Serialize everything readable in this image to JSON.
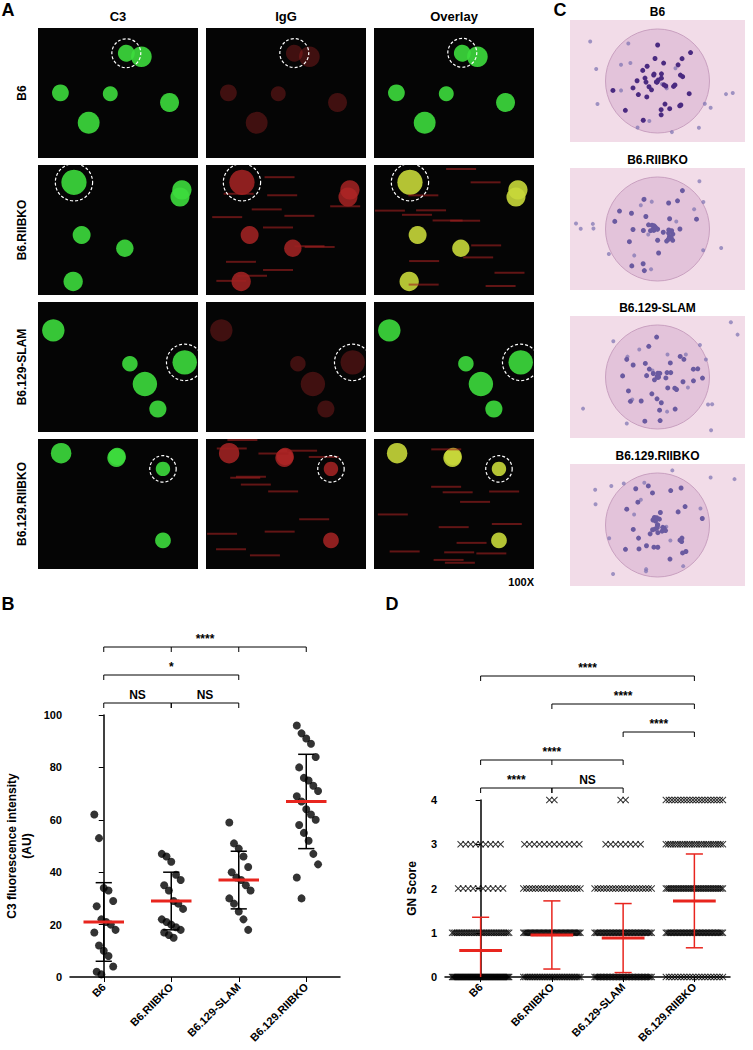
{
  "figure": {
    "panel_A": {
      "letter": "A",
      "columns": [
        "C3",
        "IgG",
        "Overlay"
      ],
      "rows": [
        "B6",
        "B6.RIIBKO",
        "B6.129-SLAM",
        "B6.129.RIIBKO"
      ],
      "magnification": "100X"
    },
    "panel_C": {
      "letter": "C",
      "titles": [
        "B6",
        "B6.RIIBKO",
        "B6.129-SLAM",
        "B6.129.RIIBKO"
      ]
    }
  },
  "chart_data": [
    {
      "panel": "B",
      "type": "scatter",
      "marker": "circle",
      "color": "#000000",
      "grid": false,
      "y_label": "C3 fluorescence intensity\n(AU)",
      "categories": [
        "B6",
        "B6.RIIBKO",
        "B6.129-SLAM",
        "B6.129.RIIBKO"
      ],
      "values": [
        [
          62,
          53,
          34,
          33,
          29,
          27,
          22,
          21,
          20,
          18,
          17,
          12,
          10,
          8,
          4,
          2,
          1
        ],
        [
          47,
          46,
          44,
          39,
          37,
          35,
          33,
          29,
          28,
          26,
          22,
          21,
          20,
          19,
          18,
          17,
          16,
          15
        ],
        [
          59,
          51,
          49,
          46,
          42,
          40,
          38,
          37,
          35,
          33,
          30,
          28,
          25,
          22,
          18
        ],
        [
          96,
          93,
          91,
          89,
          84,
          80,
          76,
          75,
          73,
          71,
          69,
          67,
          64,
          62,
          60,
          58,
          55,
          52,
          47,
          43,
          38,
          30
        ]
      ],
      "summary": {
        "mean": [
          21,
          29,
          37,
          67
        ],
        "sd": [
          15,
          11,
          11,
          18
        ],
        "colors": [
          "#e8251e",
          "#000000"
        ]
      },
      "ylim": [
        0,
        100
      ],
      "yticks": [
        0,
        20,
        40,
        60,
        80,
        100
      ],
      "significance": [
        [
          {
            "groups": [
              "B6",
              "B6.RIIBKO"
            ],
            "label": "NS"
          },
          {
            "groups": [
              "B6.RIIBKO",
              "B6.129-SLAM"
            ],
            "label": "NS"
          }
        ],
        [
          {
            "groups": [
              "B6",
              "B6.129-SLAM"
            ],
            "label": "*"
          }
        ],
        [
          {
            "groups": [
              "B6",
              "B6.RIIBKO",
              "B6.129-SLAM",
              "B6.129.RIIBKO"
            ],
            "label": "****"
          }
        ]
      ]
    },
    {
      "panel": "D",
      "type": "scatter",
      "marker": "x",
      "color": "#000000",
      "grid": false,
      "y_label": "GN Score",
      "categories": [
        "B6",
        "B6.RIIBKO",
        "B6.129-SLAM",
        "B6.129.RIIBKO"
      ],
      "scores": [
        0,
        1,
        2,
        3,
        4
      ],
      "counts": [
        [
          60,
          35,
          10,
          9,
          0
        ],
        [
          35,
          45,
          20,
          12,
          2
        ],
        [
          40,
          40,
          20,
          8,
          2
        ],
        [
          20,
          40,
          35,
          25,
          20
        ]
      ],
      "summary": {
        "mean": [
          0.6,
          0.95,
          0.88,
          1.72
        ],
        "sd": [
          0.75,
          0.77,
          0.78,
          1.06
        ],
        "colors": [
          "#e8251e",
          "#e8251e"
        ]
      },
      "ylim": [
        0,
        4
      ],
      "yticks": [
        0,
        1,
        2,
        3,
        4
      ],
      "significance": [
        [
          {
            "groups": [
              "B6",
              "B6.RIIBKO"
            ],
            "label": "****"
          },
          {
            "groups": [
              "B6.RIIBKO",
              "B6.129-SLAM"
            ],
            "label": "NS"
          }
        ],
        [
          {
            "groups": [
              "B6",
              "B6.RIIBKO",
              "B6.129-SLAM"
            ],
            "label": "****"
          }
        ],
        [
          {
            "groups": [
              "B6.129-SLAM",
              "B6.129.RIIBKO"
            ],
            "label": "****"
          }
        ],
        [
          {
            "groups": [
              "B6.RIIBKO",
              "B6.129.RIIBKO"
            ],
            "label": "****"
          }
        ],
        [
          {
            "groups": [
              "B6",
              "B6.129.RIIBKO"
            ],
            "label": "****"
          }
        ]
      ]
    }
  ]
}
